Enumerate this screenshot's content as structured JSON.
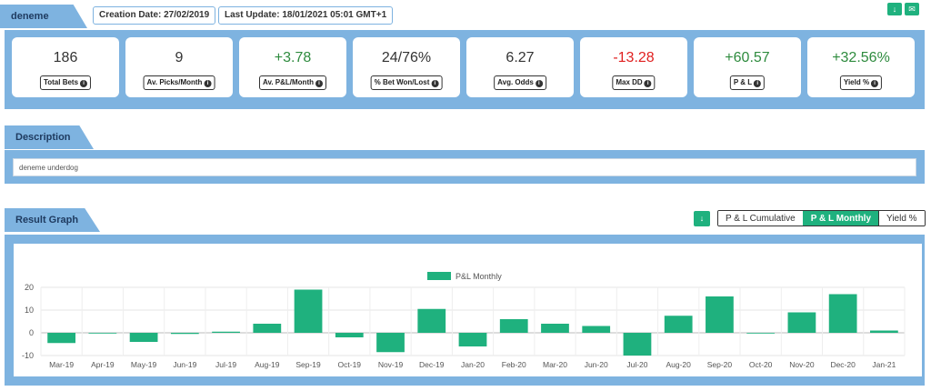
{
  "header": {
    "name": "deneme",
    "creation_date": "Creation Date: 27/02/2019",
    "last_update": "Last Update: 18/01/2021 05:01 GMT+1",
    "download_icon": "download-icon",
    "mail_icon": "mail-icon"
  },
  "stats": [
    {
      "value": "186",
      "label": "Total Bets",
      "tone": "neutral"
    },
    {
      "value": "9",
      "label": "Av. Picks/Month",
      "tone": "neutral"
    },
    {
      "value": "+3.78",
      "label": "Av. P&L/Month",
      "tone": "pos"
    },
    {
      "value": "24/76%",
      "label": "% Bet Won/Lost",
      "tone": "neutral"
    },
    {
      "value": "6.27",
      "label": "Avg. Odds",
      "tone": "neutral"
    },
    {
      "value": "-13.28",
      "label": "Max DD",
      "tone": "neg"
    },
    {
      "value": "+60.57",
      "label": "P & L",
      "tone": "pos"
    },
    {
      "value": "+32.56%",
      "label": "Yield %",
      "tone": "pos"
    }
  ],
  "description": {
    "title": "Description",
    "text": "deneme underdog"
  },
  "result_graph": {
    "title": "Result Graph",
    "download_icon": "download-icon",
    "tabs": [
      {
        "label": "P & L Cumulative",
        "active": false
      },
      {
        "label": "P & L Monthly",
        "active": true
      },
      {
        "label": "Yield %",
        "active": false
      }
    ]
  },
  "colors": {
    "panel": "#7eb3e0",
    "accent": "#1fb17e",
    "positive": "#2e8b3e",
    "negative": "#e02020"
  },
  "chart_data": {
    "type": "bar",
    "categories": [
      "Mar-19",
      "Apr-19",
      "May-19",
      "Jun-19",
      "Jul-19",
      "Aug-19",
      "Sep-19",
      "Oct-19",
      "Nov-19",
      "Dec-19",
      "Jan-20",
      "Feb-20",
      "Mar-20",
      "Jun-20",
      "Jul-20",
      "Aug-20",
      "Sep-20",
      "Oct-20",
      "Nov-20",
      "Dec-20",
      "Jan-21"
    ],
    "series": [
      {
        "name": "P&L Monthly",
        "color": "#1fb17e",
        "values": [
          -4.5,
          0,
          -4,
          -0.5,
          0.5,
          4,
          19,
          -2,
          -8.5,
          10.5,
          -6,
          6,
          4,
          3,
          -10,
          7.5,
          16,
          0,
          9,
          17,
          1
        ]
      }
    ],
    "ylim": [
      -10,
      20
    ],
    "yticks": [
      -10,
      0,
      10,
      20
    ],
    "legend": "top-center",
    "grid": true
  }
}
